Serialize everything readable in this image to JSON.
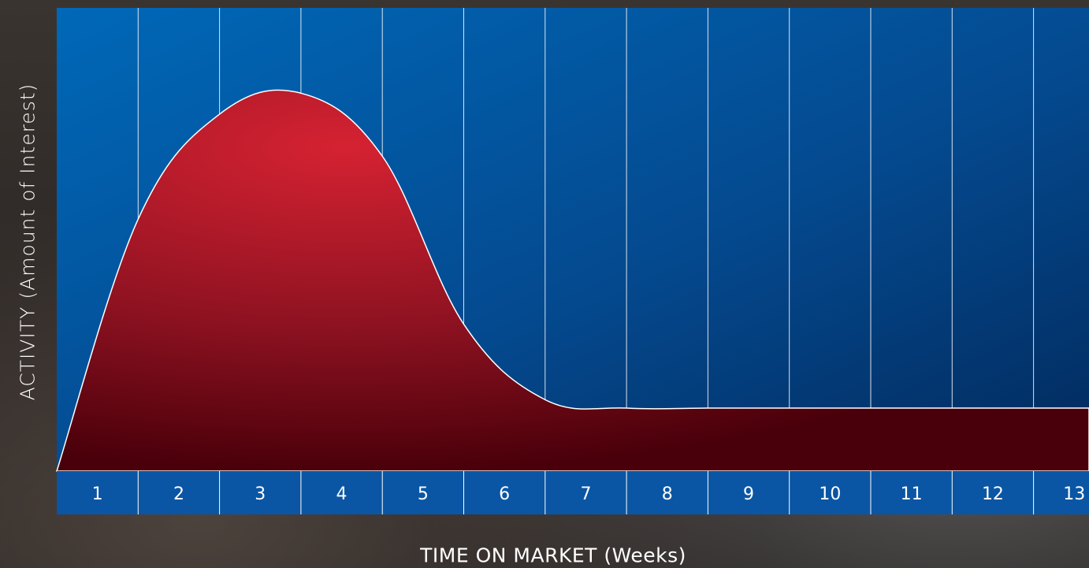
{
  "chart_data": {
    "type": "area",
    "x": [
      1,
      2,
      3,
      4,
      5,
      6,
      7,
      8,
      9,
      10,
      11,
      12,
      13
    ],
    "categories": [
      "1",
      "2",
      "3",
      "4",
      "5",
      "6",
      "7",
      "8",
      "9",
      "10",
      "11",
      "12",
      "13"
    ],
    "series": [
      {
        "values": [
          0,
          6.0,
          8.5,
          9.0,
          7.5,
          3.5,
          1.7,
          1.5,
          1.5,
          1.5,
          1.5,
          1.5,
          1.5
        ]
      }
    ],
    "title": "",
    "xlabel": "TIME ON MARKET (Weeks)",
    "ylabel": "ACTIVITY (Amount of Interest)",
    "ylim": [
      0,
      10
    ],
    "grid": true,
    "legend": "none",
    "colors": {
      "plot_background_top": "#0064b4",
      "plot_background_bottom": "#02285a",
      "area_fill_light": "#d0202f",
      "area_fill_dark": "#4a0008",
      "axis_band": "#0a56a4",
      "grid_line": "#ffffff"
    }
  }
}
